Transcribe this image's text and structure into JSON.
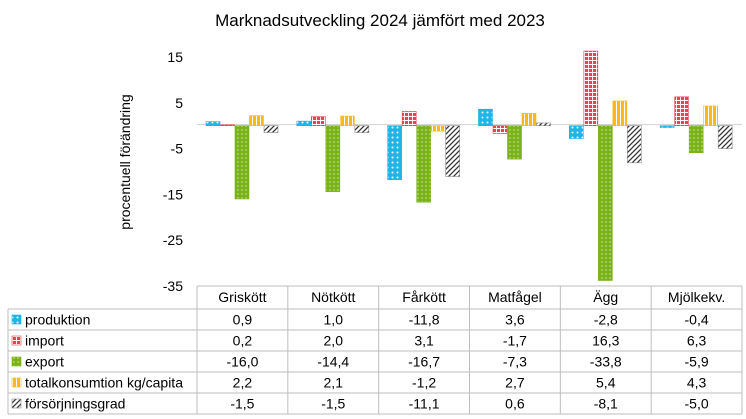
{
  "chart_data": {
    "type": "bar",
    "title": "Marknadsutveckling 2024 jämfört med 2023",
    "ylabel": "procentuell förändring",
    "xlabel": "",
    "ylim": [
      -35,
      18
    ],
    "yticks": [
      15,
      5,
      -5,
      -15,
      -25,
      -35
    ],
    "grid": false,
    "legend": "data-table",
    "categories": [
      "Griskött",
      "Nötkött",
      "Fårkött",
      "Matfågel",
      "Ägg",
      "Mjölkekv."
    ],
    "series": [
      {
        "name": "produktion",
        "color": "#1fb5e6",
        "pattern": "dots",
        "values": [
          0.9,
          1.0,
          -11.8,
          3.6,
          -2.8,
          -0.4
        ],
        "labels": [
          "0,9",
          "1,0",
          "-11,8",
          "3,6",
          "-2,8",
          "-0,4"
        ]
      },
      {
        "name": "import",
        "color": "#e8424d",
        "pattern": "grid",
        "values": [
          0.2,
          2.0,
          3.1,
          -1.7,
          16.3,
          6.3
        ],
        "labels": [
          "0,2",
          "2,0",
          "3,1",
          "-1,7",
          "16,3",
          "6,3"
        ]
      },
      {
        "name": "export",
        "color": "#7ab317",
        "pattern": "fine-dots",
        "values": [
          -16.0,
          -14.4,
          -16.7,
          -7.3,
          -33.8,
          -5.9
        ],
        "labels": [
          "-16,0",
          "-14,4",
          "-16,7",
          "-7,3",
          "-33,8",
          "-5,9"
        ]
      },
      {
        "name": "totalkonsumtion kg/capita",
        "color": "#ffb81c",
        "pattern": "vertical",
        "values": [
          2.2,
          2.1,
          -1.2,
          2.7,
          5.4,
          4.3
        ],
        "labels": [
          "2,2",
          "2,1",
          "-1,2",
          "2,7",
          "5,4",
          "4,3"
        ]
      },
      {
        "name": "försörjningsgrad",
        "color": "#8c8c8c",
        "pattern": "diagonal",
        "values": [
          -1.5,
          -1.5,
          -11.1,
          0.6,
          -8.1,
          -5.0
        ],
        "labels": [
          "-1,5",
          "-1,5",
          "-11,1",
          "0,6",
          "-8,1",
          "-5,0"
        ]
      }
    ]
  }
}
